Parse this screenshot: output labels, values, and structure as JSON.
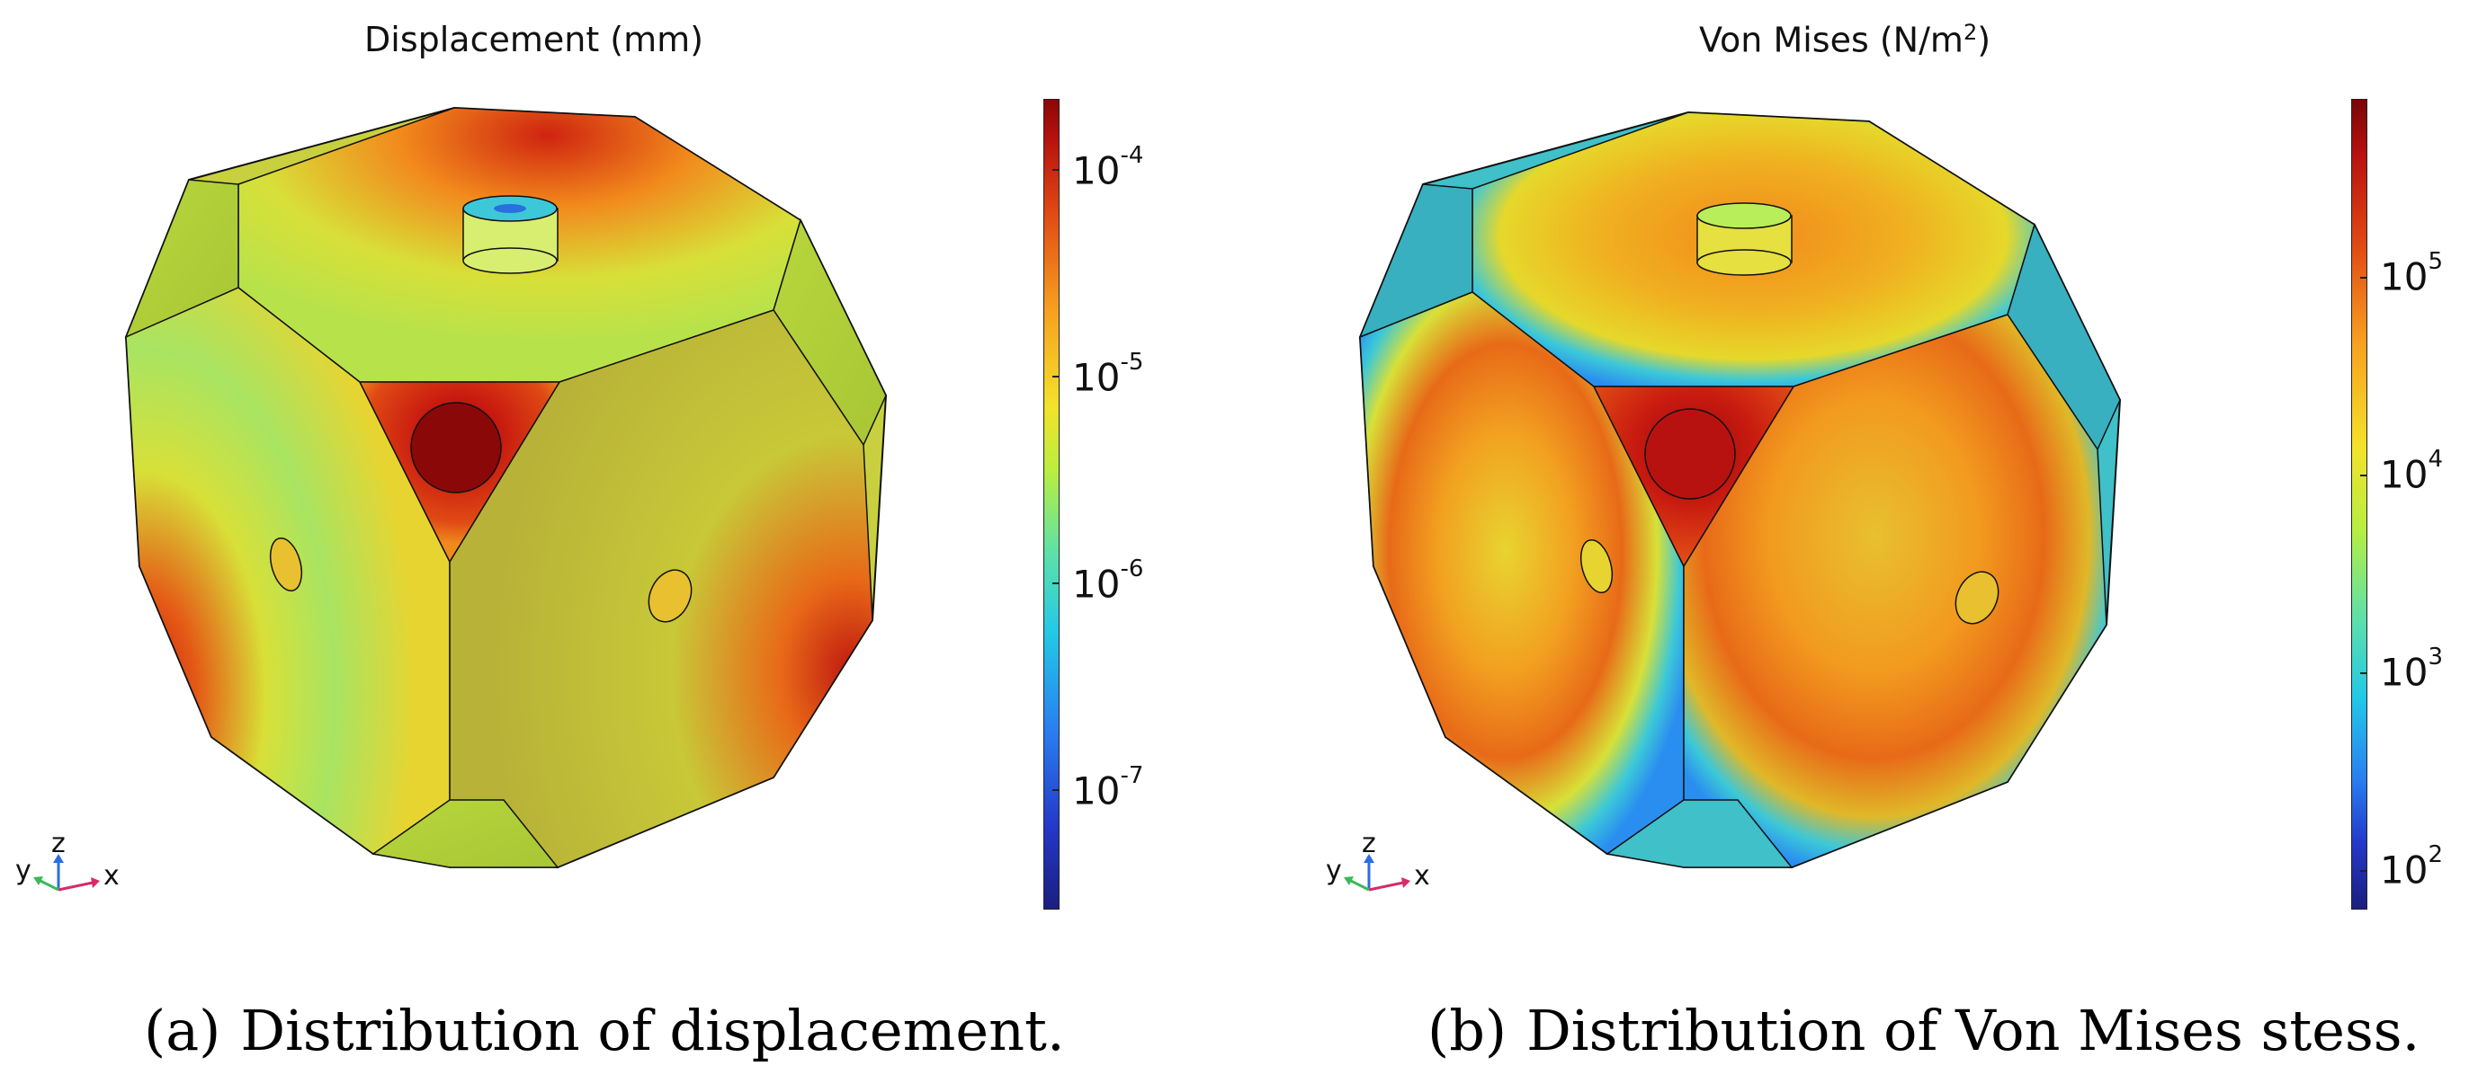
{
  "panels": [
    {
      "title": "Displacement (mm)",
      "caption_label": "(a)",
      "caption_text": "Distribution of displacement.",
      "colorbar_ticks": [
        {
          "base": "10",
          "exp": "-4"
        },
        {
          "base": "10",
          "exp": "-5"
        },
        {
          "base": "10",
          "exp": "-6"
        },
        {
          "base": "10",
          "exp": "-7"
        }
      ],
      "axes": {
        "y": "y",
        "z": "z",
        "x": "x"
      }
    },
    {
      "title_main": "Von Mises (N/m",
      "title_exp": "2",
      "title_end": ")",
      "caption_label": "(b)",
      "caption_text": "Distribution of Von Mises stess.",
      "colorbar_ticks": [
        {
          "base": "10",
          "exp": "5"
        },
        {
          "base": "10",
          "exp": "4"
        },
        {
          "base": "10",
          "exp": "3"
        },
        {
          "base": "10",
          "exp": "2"
        }
      ],
      "axes": {
        "y": "y",
        "z": "z",
        "x": "x"
      }
    }
  ],
  "colors": {
    "dark_red": "#8a0808",
    "red": "#d62a12",
    "orange": "#f08a1c",
    "yellow": "#e6e02a",
    "yellow_green": "#c8e23a",
    "cyan": "#3cc8d8",
    "blue": "#2a6ee0",
    "navy": "#1b1e80"
  }
}
